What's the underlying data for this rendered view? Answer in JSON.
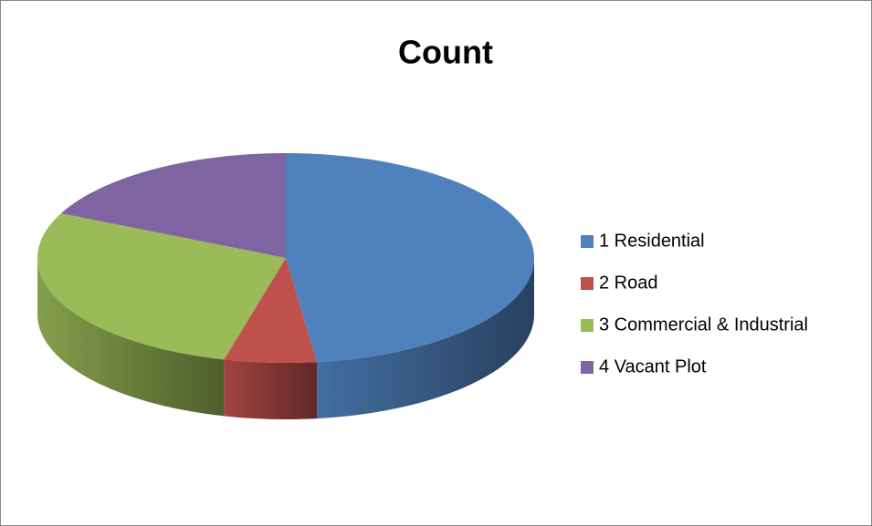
{
  "chart_data": {
    "type": "pie",
    "title": "Count",
    "categories": [
      "1 Residential",
      "2 Road",
      "3 Commercial & Industrial",
      "4 Vacant Plot"
    ],
    "values": [
      48,
      6,
      28,
      18
    ],
    "colors": [
      "#4f81bd",
      "#c0504d",
      "#9bbb59",
      "#8064a2"
    ],
    "legend": "right"
  }
}
